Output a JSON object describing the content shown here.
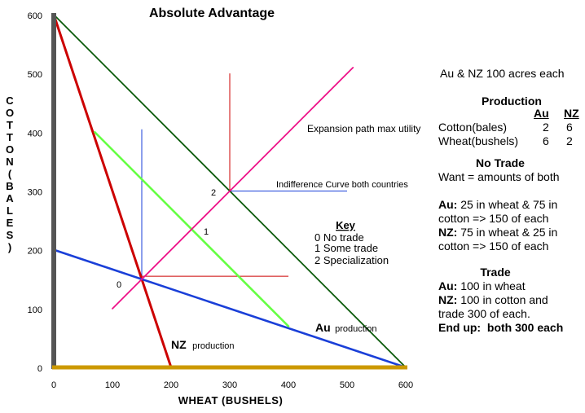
{
  "chart_data": {
    "type": "line",
    "title": "Absolute Advantage",
    "xlabel": "WHEAT (BUSHELS)",
    "ylabel": "COTTON (BALES)",
    "xlim": [
      0,
      600
    ],
    "ylim": [
      0,
      600
    ],
    "x_ticks": [
      0,
      100,
      200,
      300,
      400,
      500,
      600
    ],
    "y_ticks": [
      0,
      100,
      200,
      300,
      400,
      500,
      600
    ],
    "grid": false,
    "series": [
      {
        "name": "NZ production",
        "color": "#cc0000",
        "x": [
          0,
          200
        ],
        "y": [
          600,
          0
        ]
      },
      {
        "name": "Au production",
        "color": "#1a3fd8",
        "x": [
          0,
          600
        ],
        "y": [
          200,
          0
        ]
      },
      {
        "color": "#0a5a0a",
        "x": [
          0,
          600
        ],
        "y": [
          600,
          0
        ]
      },
      {
        "color": "#66ff44",
        "x": [
          70,
          400
        ],
        "y": [
          400,
          70
        ]
      },
      {
        "color": "#ee1188",
        "x": [
          100,
          510
        ],
        "y": [
          100,
          510
        ]
      }
    ],
    "annotations": [
      {
        "text": "Expansion path max utility",
        "x": 430,
        "y": 400
      },
      {
        "text": "Indifference Curve both countries",
        "x": 380,
        "y": 305
      },
      {
        "text": "0",
        "x": 152,
        "y": 150
      },
      {
        "text": "1",
        "x": 240,
        "y": 230
      },
      {
        "text": "2",
        "x": 300,
        "y": 300
      }
    ],
    "indifference_curves": [
      {
        "label": "0",
        "color": "#1a3fd8",
        "corner": [
          150,
          150
        ],
        "vertical_top": 400,
        "horizontal_end": 400
      },
      {
        "label": "2",
        "color": "#cc0000",
        "corner": [
          300,
          300
        ],
        "vertical_top": 500,
        "horizontal_end": 500
      }
    ],
    "secondary_lines": [
      {
        "color": "#1a3fd8",
        "x": [
          150,
          150
        ],
        "y": [
          150,
          405
        ]
      },
      {
        "color": "#cc0000",
        "x": [
          150,
          400
        ],
        "y": [
          155,
          155
        ]
      },
      {
        "color": "#cc0000",
        "x": [
          300,
          300
        ],
        "y": [
          300,
          500
        ]
      },
      {
        "color": "#1a3fd8",
        "x": [
          300,
          500
        ],
        "y": [
          300,
          300
        ]
      }
    ],
    "axis_colors": {
      "y_axis": "#555555",
      "x_axis": "#cc9900"
    },
    "key": {
      "title": "Key",
      "items": [
        "0 No trade",
        "1 Some trade",
        "2 Specialization"
      ]
    },
    "line_labels": {
      "nz_main": "NZ",
      "nz_sub": "production",
      "au_main": "Au",
      "au_sub": "production"
    }
  },
  "sidebar": {
    "intro": "Au & NZ 100 acres each",
    "production_title": "Production",
    "col_au": "Au",
    "col_nz": "NZ",
    "rows": [
      {
        "label": "Cotton(bales)",
        "au": "2",
        "nz": "6"
      },
      {
        "label": "Wheat(bushels)",
        "au": "6",
        "nz": "2"
      }
    ],
    "notrade_title": "No Trade",
    "notrade_want": "Want = amounts of both",
    "au_label": "Au:",
    "au_line1": " 25 in wheat & 75 in",
    "au_line2": "cotton => 150 of each",
    "nz_label": "NZ:",
    "nz_line1": " 75 in wheat & 25 in",
    "nz_line2": "cotton => 150 of each",
    "trade_title": "Trade",
    "trade_au_label": "Au:",
    "trade_au_text": " 100 in wheat",
    "trade_nz_label": "NZ:",
    "trade_nz_text": " 100 in cotton and",
    "trade_line3": "trade 300 of each.",
    "endup_label": "End up:",
    "endup_text": "  both 300 each"
  }
}
